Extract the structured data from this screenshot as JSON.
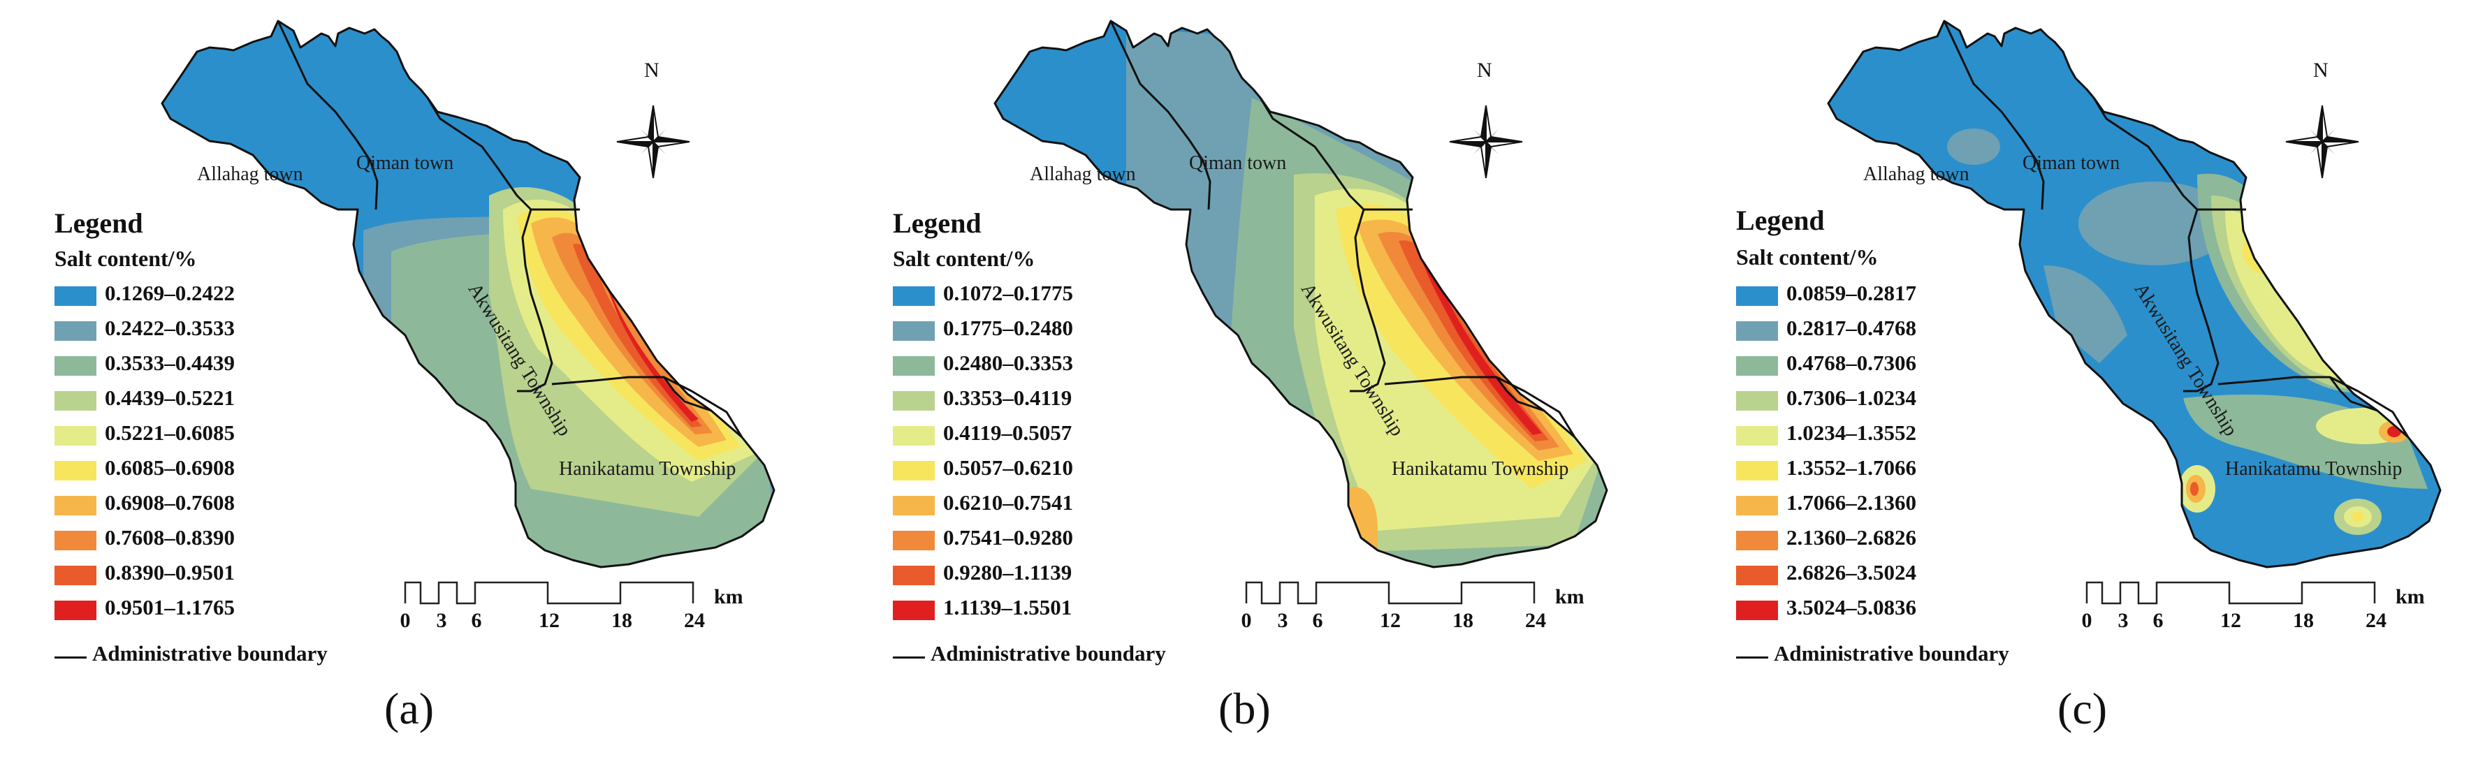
{
  "panels": [
    {
      "label": "(a)",
      "legend_title": "Legend",
      "legend_subtitle": "Salt content/%",
      "ranges": [
        "0.1269–0.2422",
        "0.2422–0.3533",
        "0.3533–0.4439",
        "0.4439–0.5221",
        "0.5221–0.6085",
        "0.6085–0.6908",
        "0.6908–0.7608",
        "0.7608–0.8390",
        "0.8390–0.9501",
        "0.9501–1.1765"
      ],
      "boundary_label": "Administrative boundary",
      "places": {
        "allahag": "Allahag town",
        "qiman": "Qiman town",
        "akwusitang": "Akwusitang Township",
        "hanikatamu": "Hanikatamu Township"
      },
      "north": "N",
      "scale_ticks": [
        "0",
        "3",
        "6",
        "12",
        "18",
        "24"
      ],
      "scale_unit": "km"
    },
    {
      "label": "(b)",
      "legend_title": "Legend",
      "legend_subtitle": "Salt content/%",
      "ranges": [
        "0.1072–0.1775",
        "0.1775–0.2480",
        "0.2480–0.3353",
        "0.3353–0.4119",
        "0.4119–0.5057",
        "0.5057–0.6210",
        "0.6210–0.7541",
        "0.7541–0.9280",
        "0.9280–1.1139",
        "1.1139–1.5501"
      ],
      "boundary_label": "Administrative boundary",
      "places": {
        "allahag": "Allahag town",
        "qiman": "Qiman town",
        "akwusitang": "Akwusitang Township",
        "hanikatamu": "Hanikatamu Township"
      },
      "north": "N",
      "scale_ticks": [
        "0",
        "3",
        "6",
        "12",
        "18",
        "24"
      ],
      "scale_unit": "km"
    },
    {
      "label": "(c)",
      "legend_title": "Legend",
      "legend_subtitle": "Salt content/%",
      "ranges": [
        "0.0859–0.2817",
        "0.2817–0.4768",
        "0.4768–0.7306",
        "0.7306–1.0234",
        "1.0234–1.3552",
        "1.3552–1.7066",
        "1.7066–2.1360",
        "2.1360–2.6826",
        "2.6826–3.5024",
        "3.5024–5.0836"
      ],
      "boundary_label": "Administrative boundary",
      "places": {
        "allahag": "Allahag town",
        "qiman": "Qiman town",
        "akwusitang": "Akwusitang Township",
        "hanikatamu": "Hanikatamu Township"
      },
      "north": "N",
      "scale_ticks": [
        "0",
        "3",
        "6",
        "12",
        "18",
        "24"
      ],
      "scale_unit": "km"
    }
  ],
  "class_colors": [
    "#2b8fcc",
    "#6fa1b3",
    "#8db99a",
    "#b9d28e",
    "#e4ec8a",
    "#f7e55e",
    "#f6b64a",
    "#f08a3a",
    "#e95b2a",
    "#e0201f"
  ]
}
